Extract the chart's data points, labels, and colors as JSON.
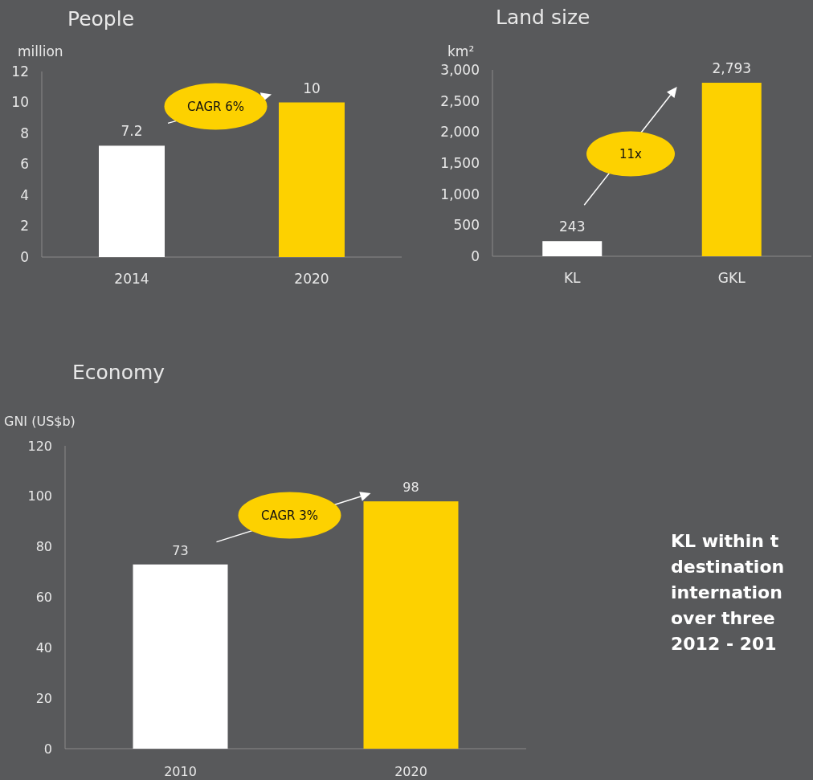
{
  "chart_data": [
    {
      "type": "bar",
      "title": "People",
      "ylabel": "million",
      "categories": [
        "2014",
        "2020"
      ],
      "values": [
        7.2,
        10
      ],
      "colors": [
        "#ffffff",
        "#fdd100"
      ],
      "ylim": [
        0,
        12
      ],
      "yticks": [
        0,
        2,
        4,
        6,
        8,
        10,
        12
      ],
      "data_labels": true,
      "annotations": [
        "CAGR 6%"
      ]
    },
    {
      "type": "bar",
      "title": "Land size",
      "ylabel": "km²",
      "categories": [
        "KL",
        "GKL"
      ],
      "values": [
        243,
        2793
      ],
      "colors": [
        "#ffffff",
        "#fdd100"
      ],
      "ylim": [
        0,
        3000
      ],
      "yticks": [
        {
          "value": 0,
          "label": "0"
        },
        {
          "value": 500,
          "label": "500"
        },
        {
          "value": 1000,
          "label": "1,000"
        },
        {
          "value": 1500,
          "label": "1,500"
        },
        {
          "value": 2000,
          "label": "2,000"
        },
        {
          "value": 2500,
          "label": "2,500"
        },
        {
          "value": 3000,
          "label": "3,000"
        }
      ],
      "value_labels": [
        "243",
        "2,793"
      ],
      "annotations": [
        "11x"
      ]
    },
    {
      "type": "bar",
      "title": "Economy",
      "ylabel": "GNI (US$b)",
      "categories": [
        "2010",
        "2020"
      ],
      "values": [
        73,
        98
      ],
      "colors": [
        "#ffffff",
        "#fdd100"
      ],
      "ylim": [
        0,
        120
      ],
      "yticks": [
        0,
        20,
        40,
        60,
        80,
        100,
        120
      ],
      "data_labels": true,
      "annotations": [
        "CAGR 3%"
      ]
    },
    {
      "type": "other",
      "annotations": [
        "KL within t",
        "destination",
        "internation",
        "over three",
        "2012 - 201"
      ]
    }
  ]
}
